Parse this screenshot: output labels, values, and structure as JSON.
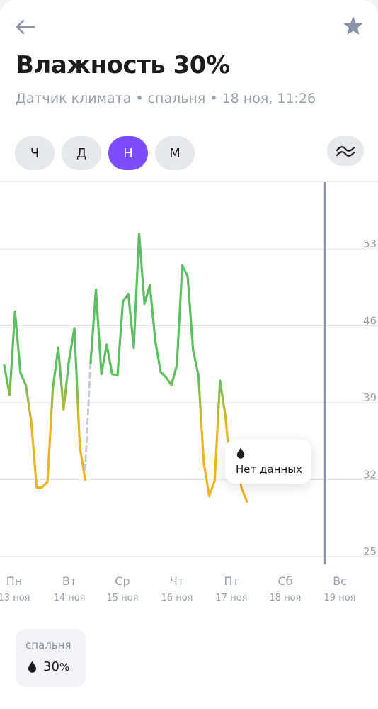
{
  "header": {
    "back_icon": "arrow-left-icon",
    "favorite_icon": "star-icon",
    "title": "Влажность 30%",
    "subtitle": "Датчик климата • спальня • 18 ноя, 11:26"
  },
  "periods": {
    "items": [
      {
        "label": "Ч",
        "active": false
      },
      {
        "label": "Д",
        "active": false
      },
      {
        "label": "Н",
        "active": true
      },
      {
        "label": "М",
        "active": false
      }
    ],
    "smoothing_icon": "wave-icon"
  },
  "colors": {
    "accent": "#7b4dff",
    "line_good": "#5cc062",
    "line_low": "#f2b31a",
    "gap": "#c5c9d1",
    "grid": "#e4e6ea",
    "cursor": "#8a94a8"
  },
  "chart_data": {
    "type": "line",
    "y_ticks": [
      "53",
      "46",
      "39",
      "32",
      "25"
    ],
    "days": [
      {
        "label": "Пн",
        "date": "13 ноя"
      },
      {
        "label": "Вт",
        "date": "14 ноя"
      },
      {
        "label": "Ср",
        "date": "15 ноя"
      },
      {
        "label": "Чт",
        "date": "16 ноя"
      },
      {
        "label": "Пт",
        "date": "17 ноя"
      },
      {
        "label": "Сб",
        "date": "18 ноя"
      },
      {
        "label": "Вс",
        "date": "19 ноя"
      }
    ],
    "series": [
      {
        "segment": "1",
        "values": [
          42.4,
          39.7,
          47.3,
          41.7,
          40.6,
          37.3,
          31.3,
          31.3,
          31.8,
          40.3,
          44.0,
          38.4,
          42.8,
          45.8,
          35.0,
          32.0
        ]
      },
      {
        "segment": "gap",
        "values": [
          32.9,
          42.6
        ],
        "no_data": true
      },
      {
        "segment": "2",
        "values": [
          42.6,
          49.3,
          41.6,
          44.3,
          41.6,
          41.5,
          48.2,
          48.9,
          44.0,
          54.4,
          48.0,
          49.7,
          44.6,
          41.8,
          41.3,
          40.6,
          42.4,
          51.5,
          50.5,
          43.8,
          41.5,
          33.5,
          30.5,
          31.9,
          41.0,
          37.8,
          32.5,
          33.8,
          31.2,
          30.0
        ]
      }
    ],
    "ylim": [
      25,
      56
    ],
    "no_data_label": "Нет данных",
    "legend": []
  },
  "room": {
    "name": "спальня",
    "value": "30",
    "unit": "%",
    "icon": "drop-icon"
  }
}
